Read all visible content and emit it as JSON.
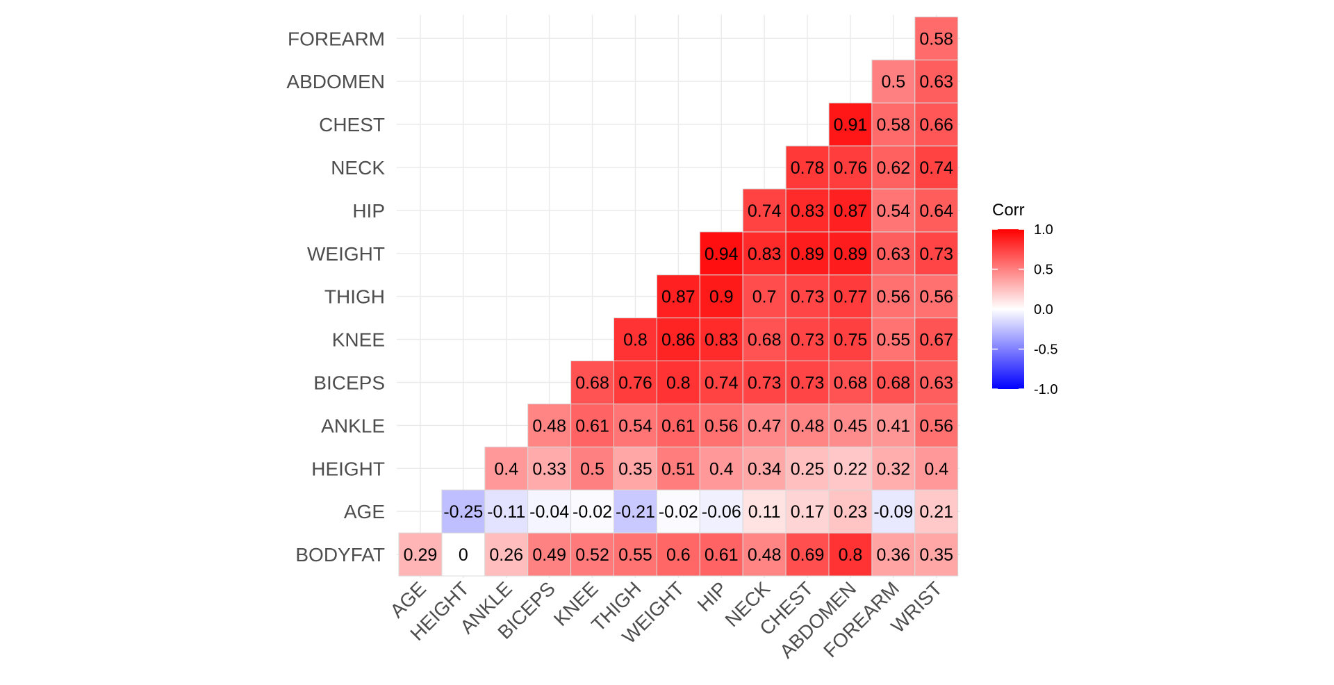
{
  "chart_data": {
    "type": "heatmap",
    "x_categories": [
      "AGE",
      "HEIGHT",
      "ANKLE",
      "BICEPS",
      "KNEE",
      "THIGH",
      "WEIGHT",
      "HIP",
      "NECK",
      "CHEST",
      "ABDOMEN",
      "FOREARM",
      "WRIST"
    ],
    "y_categories": [
      "BODYFAT",
      "AGE",
      "HEIGHT",
      "ANKLE",
      "BICEPS",
      "KNEE",
      "THIGH",
      "WEIGHT",
      "HIP",
      "NECK",
      "CHEST",
      "ABDOMEN",
      "FOREARM"
    ],
    "values": [
      [
        0.29,
        0,
        0.26,
        0.49,
        0.52,
        0.55,
        0.6,
        0.61,
        0.48,
        0.69,
        0.8,
        0.36,
        0.35
      ],
      [
        null,
        -0.25,
        -0.11,
        -0.04,
        -0.02,
        -0.21,
        -0.02,
        -0.06,
        0.11,
        0.17,
        0.23,
        -0.09,
        0.21
      ],
      [
        null,
        null,
        0.4,
        0.33,
        0.5,
        0.35,
        0.51,
        0.4,
        0.34,
        0.25,
        0.22,
        0.32,
        0.4
      ],
      [
        null,
        null,
        null,
        0.48,
        0.61,
        0.54,
        0.61,
        0.56,
        0.47,
        0.48,
        0.45,
        0.41,
        0.56
      ],
      [
        null,
        null,
        null,
        null,
        0.68,
        0.76,
        0.8,
        0.74,
        0.73,
        0.73,
        0.68,
        0.68,
        0.63
      ],
      [
        null,
        null,
        null,
        null,
        null,
        0.8,
        0.86,
        0.83,
        0.68,
        0.73,
        0.75,
        0.55,
        0.67
      ],
      [
        null,
        null,
        null,
        null,
        null,
        null,
        0.87,
        0.9,
        0.7,
        0.73,
        0.77,
        0.56,
        0.56
      ],
      [
        null,
        null,
        null,
        null,
        null,
        null,
        null,
        0.94,
        0.83,
        0.89,
        0.89,
        0.63,
        0.73
      ],
      [
        null,
        null,
        null,
        null,
        null,
        null,
        null,
        null,
        0.74,
        0.83,
        0.87,
        0.54,
        0.64
      ],
      [
        null,
        null,
        null,
        null,
        null,
        null,
        null,
        null,
        null,
        0.78,
        0.76,
        0.62,
        0.74
      ],
      [
        null,
        null,
        null,
        null,
        null,
        null,
        null,
        null,
        null,
        null,
        0.91,
        0.58,
        0.66
      ],
      [
        null,
        null,
        null,
        null,
        null,
        null,
        null,
        null,
        null,
        null,
        null,
        0.5,
        0.63
      ],
      [
        null,
        null,
        null,
        null,
        null,
        null,
        null,
        null,
        null,
        null,
        null,
        null,
        0.58
      ]
    ],
    "legend": {
      "title": "Corr",
      "range": [
        -1,
        1
      ],
      "ticks": [
        1,
        0.5,
        0,
        -0.5,
        -1
      ],
      "tick_labels": [
        "1.0",
        "0.5",
        "0.0",
        "-0.5",
        "-1.0"
      ],
      "placement": "right"
    },
    "colors": {
      "low": "#0000FF",
      "mid": "#FFFFFF",
      "high": "#FF0000",
      "grid": "#EBEBEB",
      "tile_border": "#D9D9D9"
    },
    "grid": true,
    "title": "",
    "xlabel": "",
    "ylabel": ""
  }
}
